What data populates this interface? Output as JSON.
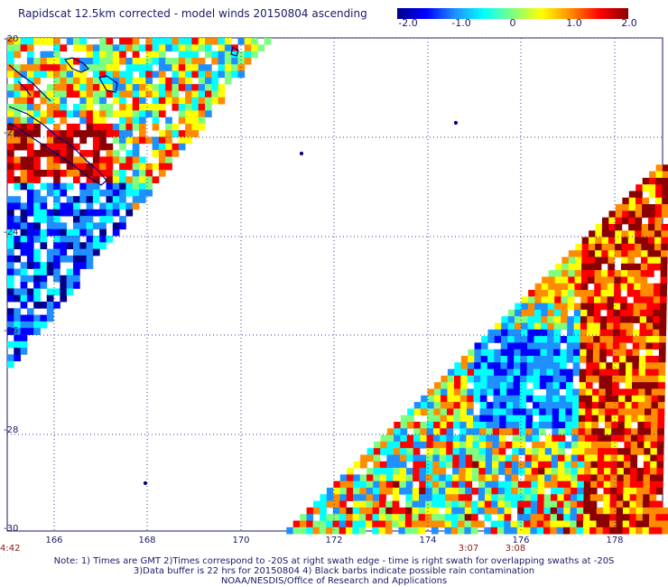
{
  "title": "Rapidscat 12.5km corrected - model winds 20150804 ascending",
  "colorbar": {
    "ticks": [
      "-2.0",
      "-1.0",
      "0",
      "1.0",
      "2.0"
    ],
    "colors": [
      "#00008b",
      "#0000ff",
      "#1e90ff",
      "#00ffff",
      "#7fff7f",
      "#ffff00",
      "#ff8c00",
      "#ff0000",
      "#8b0000"
    ]
  },
  "map": {
    "lat_labels": [
      "-20",
      "-22",
      "-24",
      "-26",
      "-28",
      "-30"
    ],
    "lon_labels": [
      "166",
      "168",
      "170",
      "172",
      "174",
      "176",
      "178"
    ],
    "grid": "dotted",
    "coastline_color": "#00007f"
  },
  "times": {
    "left": "4:42",
    "mid1": "3:07",
    "mid2": "3:08"
  },
  "notes": {
    "line1": "Note: 1) Times are GMT 2)Times correspond to -20S at right swath edge - time is right swath for overlapping swaths at -20S",
    "line2": "3)Data buffer is 22 hrs for 20150804 4) Black barbs indicate possible rain contamination",
    "line3": "NOAA/NESDIS/Office of Research and Applications"
  }
}
